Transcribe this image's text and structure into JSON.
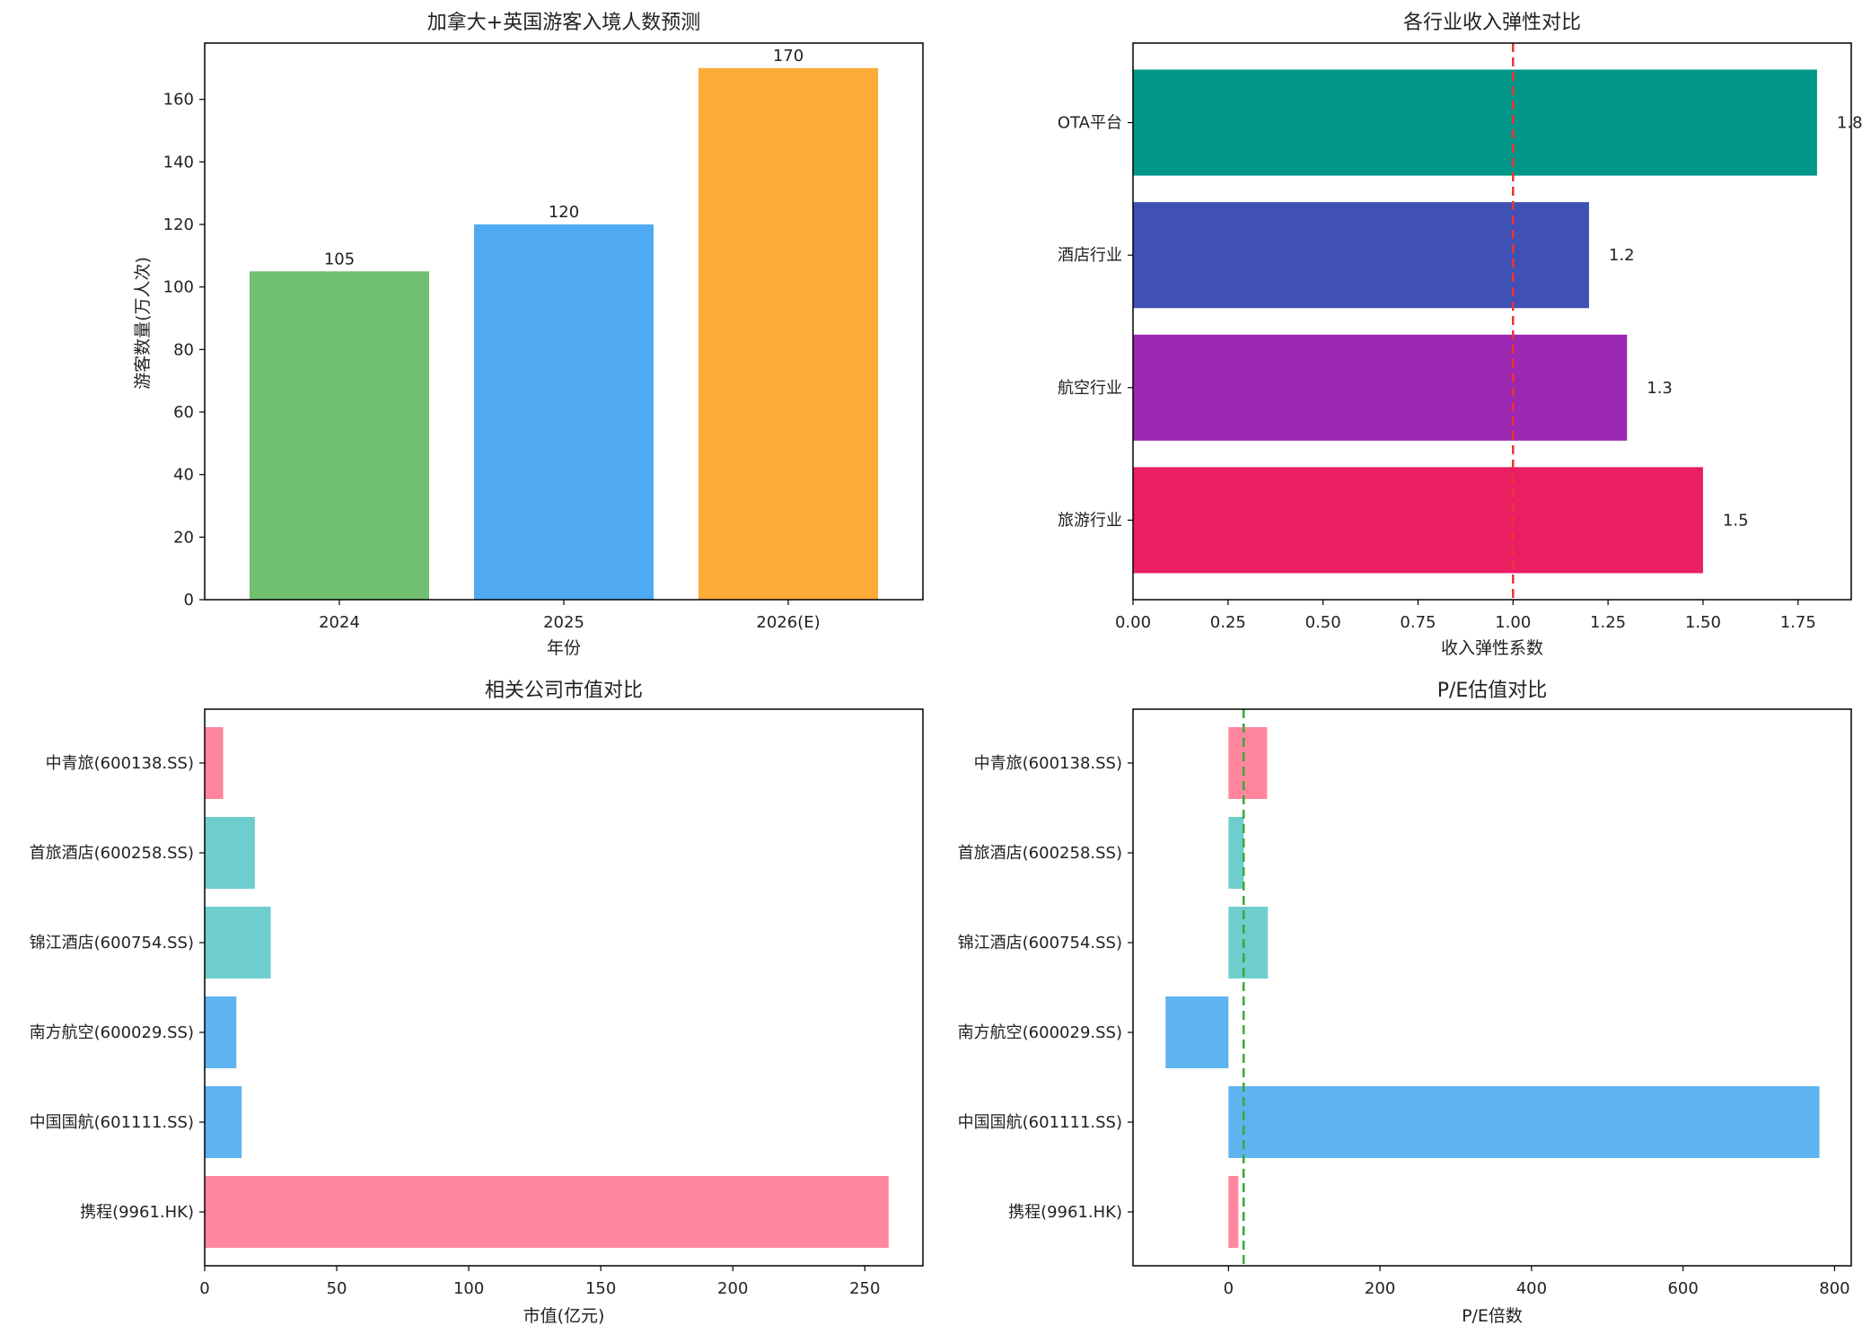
{
  "chart_data": [
    {
      "id": "tourists",
      "type": "bar",
      "title": "加拿大+英国游客入境人数预测",
      "xlabel": "年份",
      "ylabel": "游客数量(万人次)",
      "categories": [
        "2024",
        "2025",
        "2026(E)"
      ],
      "values": [
        105,
        120,
        170
      ],
      "data_labels": [
        "105",
        "120",
        "170"
      ],
      "colors": [
        "#71bf71",
        "#4faaf2",
        "#fcab36"
      ],
      "ylim": [
        0,
        178
      ],
      "yticks": [
        0,
        20,
        40,
        60,
        80,
        100,
        120,
        140,
        160
      ]
    },
    {
      "id": "elasticity",
      "type": "bar",
      "orientation": "horizontal",
      "title": "各行业收入弹性对比",
      "xlabel": "收入弹性系数",
      "ylabel": "",
      "categories": [
        "OTA平台",
        "酒店行业",
        "航空行业",
        "旅游行业"
      ],
      "values": [
        1.8,
        1.2,
        1.3,
        1.5
      ],
      "data_labels": [
        "1.8",
        "1.2",
        "1.3",
        "1.5"
      ],
      "colors": [
        "#009688",
        "#3f51b5",
        "#9c27b0",
        "#e91e63"
      ],
      "xlim": [
        0,
        1.89
      ],
      "xticks": [
        0,
        0.25,
        0.5,
        0.75,
        1.0,
        1.25,
        1.5,
        1.75
      ],
      "xtick_labels": [
        "0.00",
        "0.25",
        "0.50",
        "0.75",
        "1.00",
        "1.25",
        "1.50",
        "1.75"
      ],
      "reference_line": {
        "x": 1.0,
        "color": "#ee3333",
        "style": "dashed"
      }
    },
    {
      "id": "market_cap",
      "type": "bar",
      "orientation": "horizontal",
      "title": "相关公司市值对比",
      "xlabel": "市值(亿元)",
      "ylabel": "",
      "categories": [
        "中青旅(600138.SS)",
        "首旅酒店(600258.SS)",
        "锦江酒店(600754.SS)",
        "南方航空(600029.SS)",
        "中国国航(601111.SS)",
        "携程(9961.HK)"
      ],
      "values": [
        7,
        19,
        25,
        12,
        14,
        259
      ],
      "colors": [
        "#ff869e",
        "#6ecdcd",
        "#6ecdcd",
        "#5fb3ee",
        "#5fb3ee",
        "#ff869e"
      ],
      "xlim": [
        0,
        272
      ],
      "xticks": [
        0,
        50,
        100,
        150,
        200,
        250
      ]
    },
    {
      "id": "pe",
      "type": "bar",
      "orientation": "horizontal",
      "title": "P/E估值对比",
      "xlabel": "P/E倍数",
      "ylabel": "",
      "categories": [
        "中青旅(600138.SS)",
        "首旅酒店(600258.SS)",
        "锦江酒店(600754.SS)",
        "南方航空(600029.SS)",
        "中国国航(601111.SS)",
        "携程(9961.HK)"
      ],
      "values": [
        51,
        20,
        52,
        -83,
        780,
        13
      ],
      "colors": [
        "#ff869e",
        "#6ecdcd",
        "#6ecdcd",
        "#5fb3ee",
        "#5fb3ee",
        "#ff869e"
      ],
      "xlim": [
        -126,
        822
      ],
      "xticks": [
        0,
        200,
        400,
        600,
        800
      ],
      "reference_line": {
        "x": 20,
        "color": "#3aa83a",
        "style": "dashed"
      }
    }
  ]
}
